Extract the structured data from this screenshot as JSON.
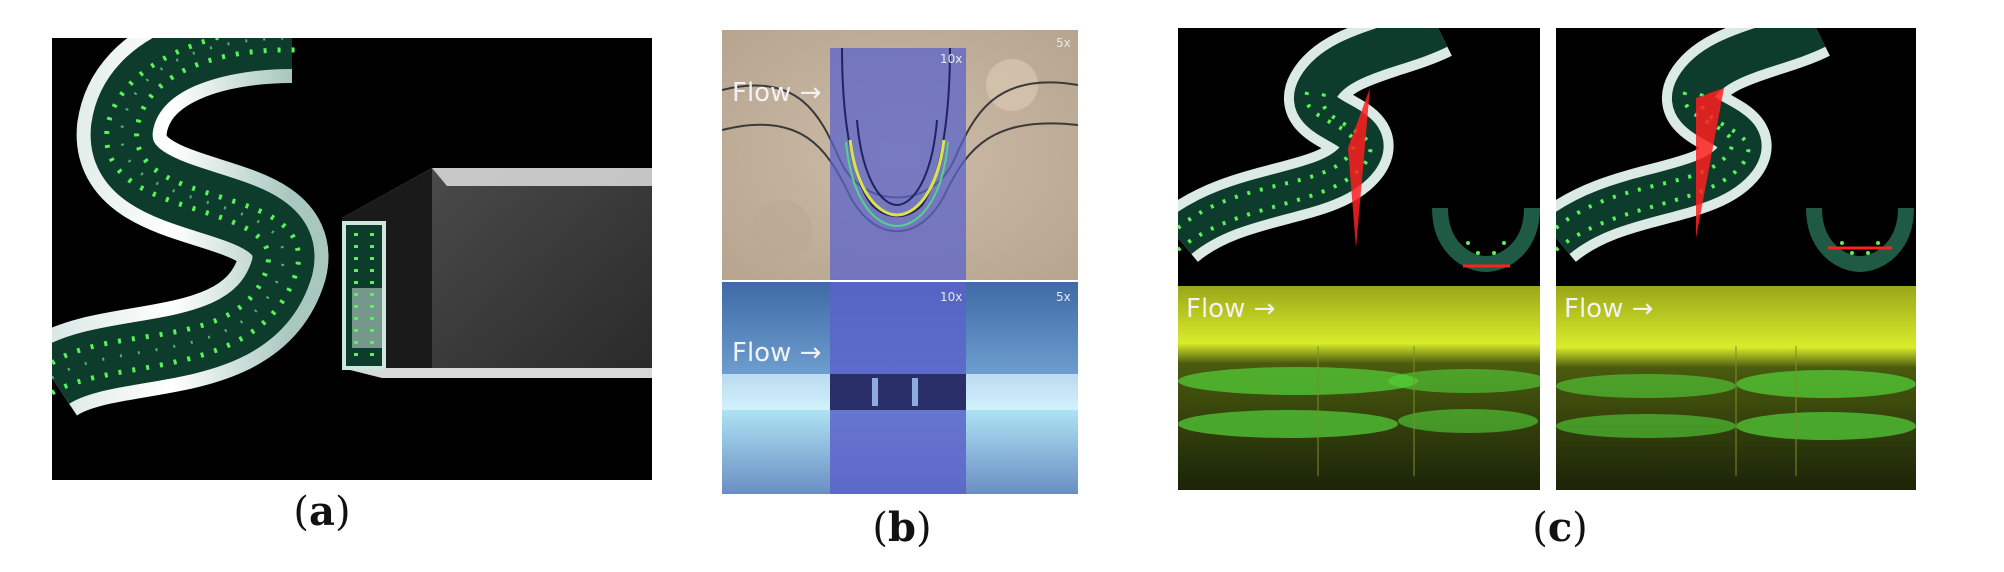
{
  "panels": {
    "a": {
      "caption_open": "(",
      "caption_letter": "a",
      "caption_close": ")"
    },
    "b": {
      "caption_open": "(",
      "caption_letter": "b",
      "caption_close": ")",
      "top": {
        "flow_label": "Flow →",
        "mag_inner": "10x",
        "mag_outer": "5x"
      },
      "bottom": {
        "flow_label": "Flow →",
        "mag_inner": "10x",
        "mag_outer": "5x"
      }
    },
    "c": {
      "caption_open": "(",
      "caption_letter": "c",
      "caption_close": ")",
      "left": {
        "flow_label": "Flow →"
      },
      "right": {
        "flow_label": "Flow →"
      }
    }
  },
  "colors": {
    "black": "#000000",
    "channel_green": "#0d3b2c",
    "particle_green": "#59f25a",
    "laser_red": "#ff2020",
    "overlay_blue": "#5b63c9",
    "fluor_yellow": "#c9e21a"
  }
}
